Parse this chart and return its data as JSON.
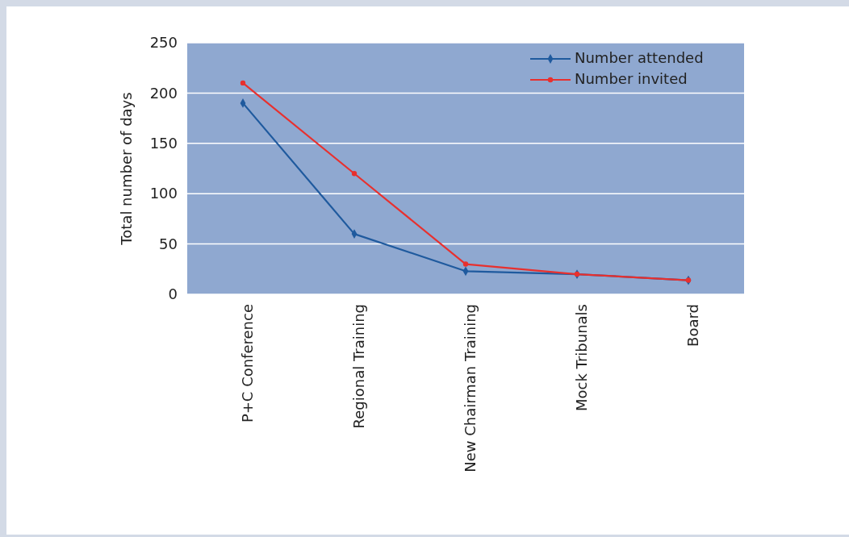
{
  "chart_data": {
    "type": "line",
    "ylabel": "Total number of days",
    "categories": [
      "P+C Conference",
      "Regional Training",
      "New Chairman Training",
      "Mock Tribunals",
      "Board"
    ],
    "series": [
      {
        "name": "Number attended",
        "color": "#1f5a9e",
        "marker": "diamond",
        "values": [
          190,
          60,
          23,
          20,
          14
        ]
      },
      {
        "name": "Number invited",
        "color": "#e8302e",
        "marker": "circle",
        "values": [
          210,
          120,
          30,
          20,
          14
        ]
      }
    ],
    "ylim": [
      0,
      250
    ],
    "yticks": [
      0,
      50,
      100,
      150,
      200,
      250
    ],
    "grid": "y",
    "legend": "top right"
  }
}
